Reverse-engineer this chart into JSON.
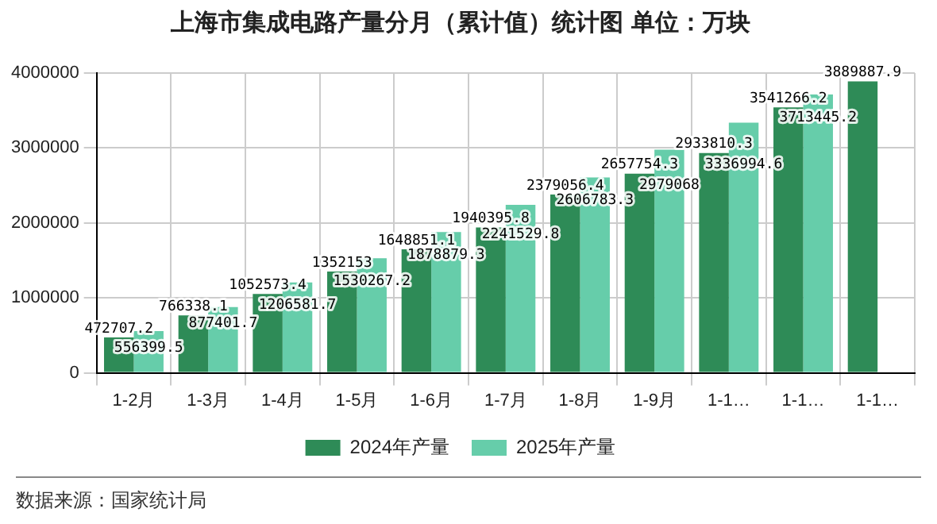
{
  "chart_data": {
    "type": "bar",
    "title": "上海市集成电路产量分月（累计值）统计图 单位：万块",
    "categories": [
      "1-2月",
      "1-3月",
      "1-4月",
      "1-5月",
      "1-6月",
      "1-7月",
      "1-8月",
      "1-9月",
      "1-1…",
      "1-1…",
      "1-1…"
    ],
    "series": [
      {
        "name": "2024年产量",
        "color": "#2e8b57",
        "values": [
          472707.2,
          766338.1,
          1052573.4,
          1352153,
          1648851.1,
          1940395.8,
          2379056.4,
          2657754.3,
          2933810.3,
          3541266.2,
          3889887.9
        ]
      },
      {
        "name": "2025年产量",
        "color": "#66cdaa",
        "values": [
          556399.5,
          877401.7,
          1206581.7,
          1530267.2,
          1878879.3,
          2241529.8,
          2606783.3,
          2979068,
          3336994.6,
          3713445.2,
          null
        ]
      }
    ],
    "ylim": [
      0,
      4000000
    ],
    "yticks": [
      0,
      1000000,
      2000000,
      3000000,
      4000000
    ],
    "grid": true,
    "legend": "bottom",
    "data_labels": true,
    "annotations": [
      "数据来源：国家统计局"
    ]
  }
}
